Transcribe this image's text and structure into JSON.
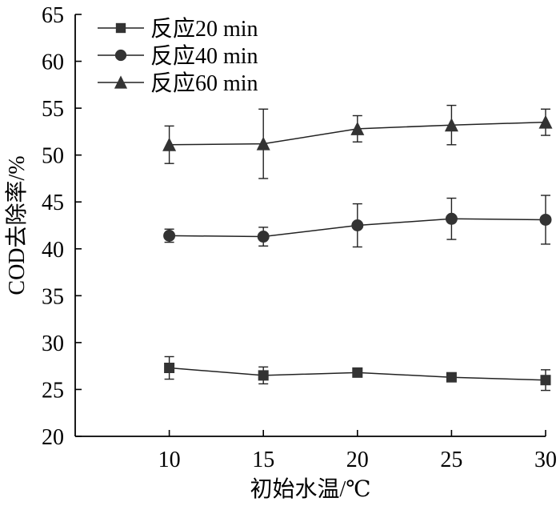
{
  "chart_data": {
    "type": "line",
    "xlabel": "初始水温/℃",
    "ylabel": "COD去除率/%",
    "x": [
      10,
      15,
      20,
      25,
      30
    ],
    "xticks": [
      "10",
      "15",
      "20",
      "25",
      "30"
    ],
    "xlim": [
      5,
      30
    ],
    "ylim": [
      20,
      65
    ],
    "yticks": [
      "20",
      "25",
      "30",
      "35",
      "40",
      "45",
      "50",
      "55",
      "60",
      "65"
    ],
    "legend_position": "top-left",
    "grid": false,
    "series": [
      {
        "name": "反应20 min",
        "marker": "square",
        "values": [
          27.3,
          26.5,
          26.8,
          26.3,
          26.0
        ],
        "error": [
          1.2,
          0.9,
          0.3,
          0.3,
          1.1
        ]
      },
      {
        "name": "反应40 min",
        "marker": "circle",
        "values": [
          41.4,
          41.3,
          42.5,
          43.2,
          43.1
        ],
        "error": [
          0.7,
          1.0,
          2.3,
          2.2,
          2.6
        ]
      },
      {
        "name": "反应60 min",
        "marker": "triangle",
        "values": [
          51.1,
          51.2,
          52.8,
          53.2,
          53.5
        ],
        "error": [
          2.0,
          3.7,
          1.4,
          2.1,
          1.4
        ]
      }
    ]
  }
}
